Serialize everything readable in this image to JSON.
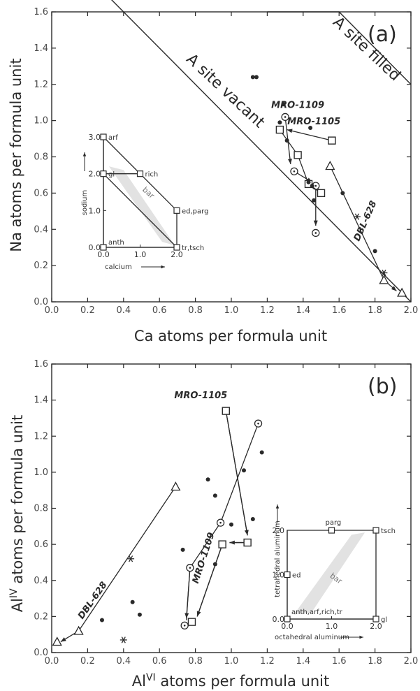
{
  "chart_data": [
    {
      "type": "scatter",
      "panel_label": "(a)",
      "xlabel": "Ca atoms per formula unit",
      "ylabel": "Na atoms per formula unit",
      "xlim": [
        0,
        2.0
      ],
      "ylim": [
        0,
        1.6
      ],
      "xticks": [
        "0.0",
        "0.2",
        "0.4",
        "0.6",
        "0.8",
        "1.0",
        "1.2",
        "1.4",
        "1.6",
        "1.8",
        "2.0"
      ],
      "yticks": [
        "0.0",
        "0.2",
        "0.4",
        "0.6",
        "0.8",
        "1.0",
        "1.2",
        "1.4",
        "1.6"
      ],
      "grid": false,
      "region_labels": {
        "vacant": "A site vacant",
        "filled": "A site filled"
      },
      "boundaries": {
        "vacant_line": [
          [
            0.0,
            2.0
          ],
          [
            2.0,
            0.0
          ]
        ],
        "filled_line": [
          [
            1.2,
            1.6
          ],
          [
            1.6,
            1.6
          ],
          [
            2.0,
            1.2
          ]
        ]
      },
      "series": [
        {
          "name": "MRO-1109",
          "marker": "circle",
          "points": [
            [
              1.3,
              1.02
            ],
            [
              1.35,
              0.72
            ],
            [
              1.47,
              0.64
            ],
            [
              1.47,
              0.38
            ]
          ],
          "arrows": [
            [
              [
                1.3,
                1.02
              ],
              [
                1.33,
                0.76
              ]
            ],
            [
              [
                1.35,
                0.72
              ],
              [
                1.45,
                0.66
              ]
            ],
            [
              [
                1.47,
                0.64
              ],
              [
                1.47,
                0.42
              ]
            ]
          ],
          "label": "MRO-1109",
          "label_at": [
            1.37,
            1.07
          ]
        },
        {
          "name": "MRO-1105",
          "marker": "square",
          "points": [
            [
              1.56,
              0.89
            ],
            [
              1.27,
              0.95
            ],
            [
              1.37,
              0.81
            ],
            [
              1.43,
              0.65
            ],
            [
              1.5,
              0.6
            ]
          ],
          "arrows": [
            [
              [
                1.56,
                0.89
              ],
              [
                1.31,
                0.95
              ]
            ]
          ],
          "lines": [
            [
              [
                1.27,
                0.95
              ],
              [
                1.37,
                0.81
              ],
              [
                1.43,
                0.65
              ],
              [
                1.5,
                0.6
              ]
            ]
          ],
          "label": "MRO-1105",
          "label_at": [
            1.46,
            0.98
          ]
        },
        {
          "name": "DBL-628",
          "marker": "triangle",
          "points": [
            [
              1.55,
              0.75
            ],
            [
              1.85,
              0.12
            ],
            [
              1.95,
              0.05
            ]
          ],
          "asterisks": [
            [
              1.7,
              0.47
            ],
            [
              1.85,
              0.16
            ]
          ],
          "lines": [
            [
              [
                1.55,
                0.75
              ],
              [
                1.85,
                0.12
              ]
            ]
          ],
          "arrows": [
            [
              [
                1.85,
                0.12
              ],
              [
                1.92,
                0.06
              ]
            ]
          ],
          "label": "DBL-628",
          "label_at": [
            1.76,
            0.44
          ],
          "label_angle": -66
        },
        {
          "name": "",
          "marker": "dot",
          "points": [
            [
              1.12,
              1.24
            ],
            [
              1.14,
              1.24
            ],
            [
              1.29,
              1.09
            ],
            [
              1.27,
              0.99
            ],
            [
              1.31,
              0.89
            ],
            [
              1.44,
              0.96
            ],
            [
              1.43,
              0.66
            ],
            [
              1.45,
              0.64
            ],
            [
              1.46,
              0.56
            ],
            [
              1.62,
              0.6
            ],
            [
              1.8,
              0.28
            ]
          ]
        }
      ],
      "inset": {
        "xlabel": "calcium",
        "ylabel": "sodium",
        "xticks": [
          "0.0",
          "1.0",
          "2.0"
        ],
        "yticks": [
          "0.0",
          "1.0",
          "2.0",
          "3.0"
        ],
        "xlim": [
          0,
          2.0
        ],
        "ylim": [
          0,
          3.0
        ],
        "endmembers": [
          {
            "label": "arf",
            "x": 0,
            "y": 3
          },
          {
            "label": "gl",
            "x": 0,
            "y": 2
          },
          {
            "label": "rich",
            "x": 1,
            "y": 2
          },
          {
            "label": "ed,parg",
            "x": 2,
            "y": 1
          },
          {
            "label": "anth",
            "x": 0,
            "y": 0
          },
          {
            "label": "tr,tsch",
            "x": 2,
            "y": 0
          }
        ],
        "region_label": "bar"
      }
    },
    {
      "type": "scatter",
      "panel_label": "(b)",
      "xlabel": "Al",
      "xlabel_sup": "VI",
      "xlabel_rest": "atoms per formula unit",
      "ylabel": "Al",
      "ylabel_sup": "IV",
      "ylabel_rest": "atoms per formula unit",
      "xlim": [
        0,
        2.0
      ],
      "ylim": [
        0,
        1.6
      ],
      "xticks": [
        "0.0",
        "0.2",
        "0.4",
        "0.6",
        "0.8",
        "1.0",
        "1.2",
        "1.4",
        "1.6",
        "1.8",
        "2.0"
      ],
      "yticks": [
        "0.0",
        "0.2",
        "0.4",
        "0.6",
        "0.8",
        "1.0",
        "1.2",
        "1.4",
        "1.6"
      ],
      "grid": false,
      "series": [
        {
          "name": "MRO-1105",
          "marker": "square",
          "points": [
            [
              0.97,
              1.34
            ],
            [
              1.09,
              0.61
            ],
            [
              0.95,
              0.6
            ],
            [
              0.78,
              0.17
            ]
          ],
          "lines": [
            [
              [
                0.97,
                1.34
              ],
              [
                1.09,
                0.65
              ]
            ],
            [
              [
                1.09,
                0.61
              ],
              [
                0.99,
                0.61
              ]
            ],
            [
              [
                0.95,
                0.6
              ],
              [
                0.81,
                0.2
              ]
            ]
          ],
          "arrows": [
            [
              [
                0.97,
                1.34
              ],
              [
                1.09,
                0.65
              ]
            ],
            [
              [
                1.09,
                0.61
              ],
              [
                0.99,
                0.61
              ]
            ],
            [
              [
                0.95,
                0.6
              ],
              [
                0.81,
                0.2
              ]
            ]
          ],
          "label": "MRO-1105",
          "label_at": [
            0.83,
            1.41
          ]
        },
        {
          "name": "MRO-1109",
          "marker": "circle",
          "points": [
            [
              1.15,
              1.27
            ],
            [
              0.94,
              0.72
            ],
            [
              0.77,
              0.47
            ],
            [
              0.74,
              0.15
            ]
          ],
          "lines": [
            [
              [
                1.15,
                1.27
              ],
              [
                0.94,
                0.72
              ],
              [
                0.77,
                0.47
              ],
              [
                0.75,
                0.18
              ]
            ]
          ],
          "arrows": [
            [
              [
                0.77,
                0.47
              ],
              [
                0.75,
                0.19
              ]
            ]
          ],
          "label": "MRO-1109",
          "label_at": [
            0.86,
            0.52
          ],
          "label_angle": -72
        },
        {
          "name": "DBL-628",
          "marker": "triangle",
          "points": [
            [
              0.69,
              0.92
            ],
            [
              0.15,
              0.12
            ],
            [
              0.03,
              0.06
            ]
          ],
          "asterisks": [
            [
              0.44,
              0.52
            ],
            [
              0.4,
              0.07
            ]
          ],
          "lines": [
            [
              [
                0.69,
                0.92
              ],
              [
                0.15,
                0.12
              ]
            ]
          ],
          "arrows": [
            [
              [
                0.15,
                0.12
              ],
              [
                0.05,
                0.06
              ]
            ]
          ],
          "label": "DBL-628",
          "label_at": [
            0.24,
            0.28
          ],
          "label_angle": -55
        },
        {
          "name": "",
          "marker": "dot",
          "points": [
            [
              0.28,
              0.18
            ],
            [
              0.45,
              0.28
            ],
            [
              0.49,
              0.21
            ],
            [
              0.73,
              0.57
            ],
            [
              0.87,
              0.96
            ],
            [
              0.91,
              0.87
            ],
            [
              0.91,
              0.49
            ],
            [
              1.0,
              0.71
            ],
            [
              1.07,
              1.01
            ],
            [
              1.12,
              0.74
            ],
            [
              1.17,
              1.11
            ]
          ]
        }
      ],
      "inset": {
        "xlabel": "octahedral aluminum",
        "ylabel": "tetrahedral aluminum",
        "xticks": [
          "0.0",
          "1.0",
          "2.0"
        ],
        "yticks": [
          "0.0",
          "1.0",
          "2.0"
        ],
        "xlim": [
          0,
          2.0
        ],
        "ylim": [
          0,
          2.0
        ],
        "endmembers": [
          {
            "label": "parg",
            "x": 1,
            "y": 2
          },
          {
            "label": "tsch",
            "x": 2,
            "y": 2
          },
          {
            "label": "ed",
            "x": 0,
            "y": 1
          },
          {
            "label": "anth,arf,rich,tr",
            "x": 0,
            "y": 0
          },
          {
            "label": "gl",
            "x": 2,
            "y": 0
          }
        ],
        "region_label": "bar"
      }
    }
  ]
}
